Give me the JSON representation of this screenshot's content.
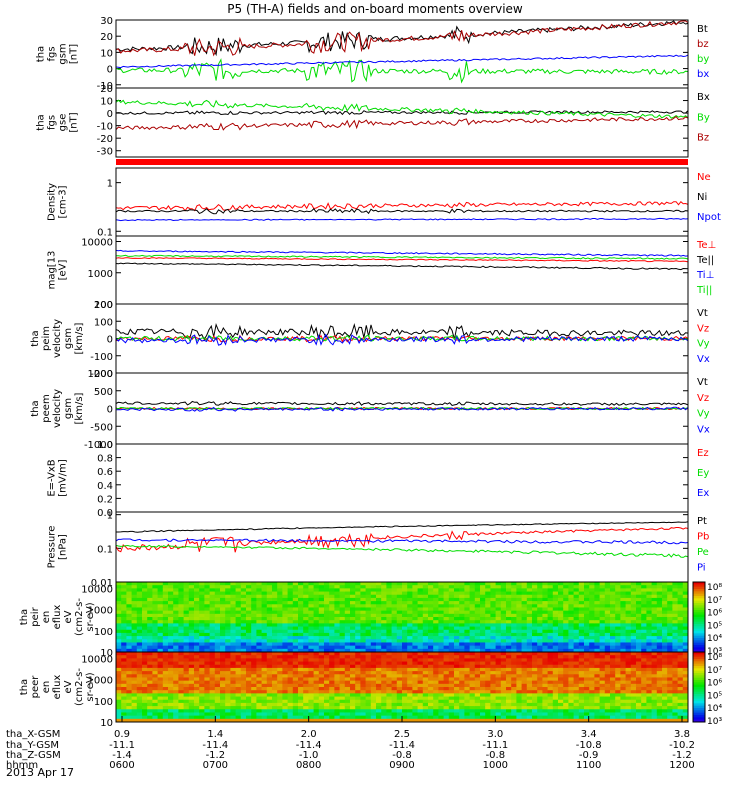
{
  "title": "P5 (TH-A) fields and on-board moments overview",
  "date_label": "2013 Apr 17",
  "colors": {
    "black": "#000000",
    "red": "#ff0000",
    "darkred": "#aa0000",
    "green": "#00dd00",
    "blue": "#0000ff"
  },
  "chart_data": [
    {
      "type": "line",
      "id": "fgs_btotal",
      "ylabel": [
        "tha",
        "fgs",
        "gsm",
        "[nT]"
      ],
      "ylim": [
        -12,
        30
      ],
      "ticks": [
        30,
        20,
        10,
        0,
        -10
      ],
      "series": [
        {
          "name": "Bt",
          "color": "#000000",
          "shape": "ramp",
          "base": 12,
          "end": 29,
          "noise": 3,
          "spikes": 8
        },
        {
          "name": "bz",
          "color": "#aa0000",
          "shape": "ramp",
          "base": 11,
          "end": 29,
          "noise": 3,
          "spikes": 8
        },
        {
          "name": "by",
          "color": "#00dd00",
          "shape": "flat",
          "base": -1,
          "end": -2,
          "noise": 3,
          "spikes": 9
        },
        {
          "name": "bx",
          "color": "#0000ff",
          "shape": "flat",
          "base": 1,
          "end": 8,
          "noise": 1,
          "spikes": 2
        }
      ]
    },
    {
      "type": "line",
      "id": "fgs_gse",
      "ylabel": [
        "tha",
        "fgs",
        "gse",
        "[nT]"
      ],
      "ylim": [
        -35,
        20
      ],
      "ticks": [
        20,
        10,
        0,
        -10,
        -20,
        -30
      ],
      "series": [
        {
          "name": "Bx",
          "color": "#000000",
          "shape": "flat",
          "base": 0,
          "end": 1,
          "noise": 2,
          "spikes": 3
        },
        {
          "name": "By",
          "color": "#00dd00",
          "shape": "flat",
          "base": 9,
          "end": -3,
          "noise": 3,
          "spikes": 4
        },
        {
          "name": "Bz",
          "color": "#aa0000",
          "shape": "flat",
          "base": -12,
          "end": -4,
          "noise": 3,
          "spikes": 4
        }
      ]
    },
    {
      "type": "line",
      "id": "density",
      "ylabel": [
        "Density",
        "[cm-3]"
      ],
      "ylog": true,
      "ylim": [
        0.08,
        2.0
      ],
      "ticks": [
        1.0,
        0.1
      ],
      "series": [
        {
          "name": "Ne",
          "color": "#ff0000",
          "shape": "flat",
          "base": 0.3,
          "end": 0.38,
          "noise": 0.06,
          "spikes": 3
        },
        {
          "name": "Ni",
          "color": "#000000",
          "shape": "flat",
          "base": 0.26,
          "end": 0.26,
          "noise": 0.02,
          "spikes": 6
        },
        {
          "name": "Npot",
          "color": "#0000ff",
          "shape": "flat",
          "base": 0.17,
          "end": 0.18,
          "noise": 0.01,
          "spikes": 1
        }
      ]
    },
    {
      "type": "line",
      "id": "temperature",
      "ylabel": [
        "mag[13",
        "[eV]"
      ],
      "ylog": true,
      "ylim": [
        100,
        15000
      ],
      "ticks": [
        10000,
        1000,
        100
      ],
      "series": [
        {
          "name": "Te⊥",
          "color": "#ff0000",
          "shape": "flat",
          "base": 3000,
          "end": 2300,
          "noise": 200,
          "spikes": 2
        },
        {
          "name": "Te||",
          "color": "#000000",
          "shape": "flat",
          "base": 2000,
          "end": 1300,
          "noise": 150,
          "spikes": 2
        },
        {
          "name": "Ti⊥",
          "color": "#0000ff",
          "shape": "flat",
          "base": 5000,
          "end": 3500,
          "noise": 400,
          "spikes": 2
        },
        {
          "name": "Ti||",
          "color": "#00dd00",
          "shape": "flat",
          "base": 3500,
          "end": 2800,
          "noise": 300,
          "spikes": 2
        }
      ]
    },
    {
      "type": "line",
      "id": "peim_velocity",
      "ylabel": [
        "tha",
        "peim",
        "velocity",
        "gsm",
        "[km/s]"
      ],
      "ylim": [
        -200,
        200
      ],
      "ticks": [
        200,
        100,
        0,
        -100,
        -200
      ],
      "series": [
        {
          "name": "Vt",
          "color": "#000000",
          "shape": "flat",
          "base": 40,
          "end": 30,
          "noise": 35,
          "spikes": 5
        },
        {
          "name": "Vz",
          "color": "#ff0000",
          "shape": "flat",
          "base": 0,
          "end": 0,
          "noise": 25,
          "spikes": 3
        },
        {
          "name": "Vy",
          "color": "#00dd00",
          "shape": "flat",
          "base": 0,
          "end": 0,
          "noise": 25,
          "spikes": 3
        },
        {
          "name": "Vx",
          "color": "#0000ff",
          "shape": "flat",
          "base": -10,
          "end": 0,
          "noise": 30,
          "spikes": 4
        }
      ]
    },
    {
      "type": "line",
      "id": "peem_velocity",
      "ylabel": [
        "tha",
        "peem",
        "velocity",
        "gsm",
        "[km/s]"
      ],
      "ylim": [
        -1000,
        1000
      ],
      "ticks": [
        1000,
        500,
        0,
        -500,
        -1000
      ],
      "series": [
        {
          "name": "Vt",
          "color": "#000000",
          "shape": "flat",
          "base": 150,
          "end": 120,
          "noise": 70,
          "spikes": 3
        },
        {
          "name": "Vz",
          "color": "#ff0000",
          "shape": "flat",
          "base": 0,
          "end": 0,
          "noise": 60,
          "spikes": 2
        },
        {
          "name": "Vy",
          "color": "#00dd00",
          "shape": "flat",
          "base": 0,
          "end": 0,
          "noise": 60,
          "spikes": 2
        },
        {
          "name": "Vx",
          "color": "#0000ff",
          "shape": "flat",
          "base": -30,
          "end": 0,
          "noise": 70,
          "spikes": 3
        }
      ]
    },
    {
      "type": "line",
      "id": "efield",
      "ylabel": [
        "E=-VxB",
        "[mV/m]"
      ],
      "ylim": [
        0,
        1
      ],
      "ticks": [
        1.0,
        0.8,
        0.6,
        0.4,
        0.2,
        0.0
      ],
      "series": [
        {
          "name": "Ez",
          "color": "#ff0000",
          "empty": true
        },
        {
          "name": "Ey",
          "color": "#00dd00",
          "empty": true
        },
        {
          "name": "Ex",
          "color": "#0000ff",
          "empty": true
        }
      ]
    },
    {
      "type": "line",
      "id": "pressure",
      "ylabel": [
        "Pressure",
        "[nPa]"
      ],
      "ylog": true,
      "ylim": [
        0.01,
        1.2
      ],
      "ticks": [
        1.0,
        0.1,
        0.01
      ],
      "series": [
        {
          "name": "Pt",
          "color": "#000000",
          "shape": "flat",
          "base": 0.3,
          "end": 0.6,
          "noise": 0.03,
          "spikes": 1
        },
        {
          "name": "Pb",
          "color": "#ff0000",
          "shape": "ramp",
          "base": 0.1,
          "end": 0.4,
          "noise": 0.05,
          "spikes": 7
        },
        {
          "name": "Pe",
          "color": "#00dd00",
          "shape": "flat",
          "base": 0.12,
          "end": 0.06,
          "noise": 0.015,
          "spikes": 1
        },
        {
          "name": "Pi",
          "color": "#0000ff",
          "shape": "flat",
          "base": 0.18,
          "end": 0.15,
          "noise": 0.03,
          "spikes": 1
        }
      ]
    },
    {
      "type": "heatmap",
      "id": "peir_spectrogram",
      "ylabel": [
        "tha",
        "peir",
        "en",
        "eflux",
        "eV",
        "(cm2-s-",
        "sr-eV)"
      ],
      "ylog": true,
      "ylim": [
        10,
        20000
      ],
      "ticks": [
        10000,
        1000,
        100,
        10
      ],
      "colorbar_ticks": [
        "10⁸",
        "10⁷",
        "10⁶",
        "10⁵",
        "10⁴",
        "10³"
      ]
    },
    {
      "type": "heatmap",
      "id": "peer_spectrogram",
      "ylabel": [
        "tha",
        "peer",
        "en",
        "eflux",
        "eV",
        "(cm2-s-",
        "sr-eV)"
      ],
      "ylog": true,
      "ylim": [
        10,
        20000
      ],
      "ticks": [
        10000,
        1000,
        100,
        10
      ],
      "colorbar_ticks": [
        "10⁸",
        "10⁷",
        "10⁶",
        "10⁵",
        "10⁴",
        "10³"
      ]
    }
  ],
  "x_axis": {
    "row_labels": [
      "tha_X-GSM",
      "tha_Y-GSM",
      "tha_Z-GSM",
      "hhmm"
    ],
    "ticks": [
      {
        "x": "0.9",
        "y": "-11.1",
        "z": "-1.4",
        "t": "0600"
      },
      {
        "x": "1.4",
        "y": "-11.4",
        "z": "-1.2",
        "t": "0700"
      },
      {
        "x": "2.0",
        "y": "-11.4",
        "z": "-1.0",
        "t": "0800"
      },
      {
        "x": "2.5",
        "y": "-11.4",
        "z": "-0.8",
        "t": "0900"
      },
      {
        "x": "3.0",
        "y": "-11.1",
        "z": "-0.8",
        "t": "1000"
      },
      {
        "x": "3.4",
        "y": "-10.8",
        "z": "-0.9",
        "t": "1100"
      },
      {
        "x": "3.8",
        "y": "-10.2",
        "z": "-1.2",
        "t": "1200"
      }
    ]
  }
}
